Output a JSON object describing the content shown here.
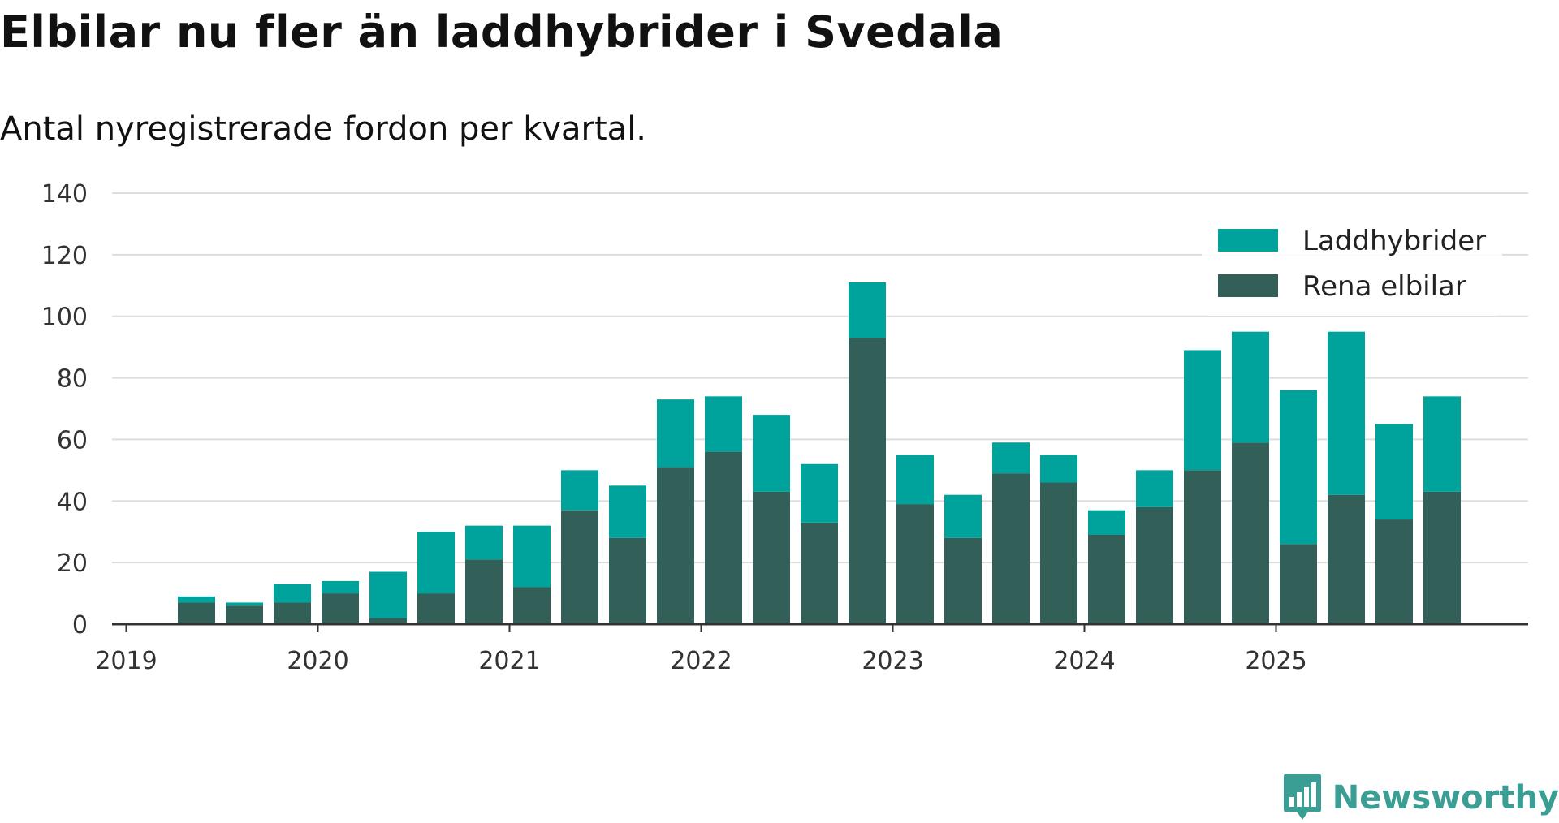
{
  "title": "Elbilar nu fler än laddhybrider i Svedala",
  "subtitle": "Antal nyregistrerade fordon per kvartal.",
  "brand": "Newsworthy",
  "colors": {
    "laddhybrider": "#00a39b",
    "rena_elbilar": "#335f59",
    "grid": "#dddddd",
    "axis": "#333333",
    "brand": "#3a9e94"
  },
  "chart_data": {
    "type": "bar",
    "stacked": true,
    "title": "Elbilar nu fler än laddhybrider i Svedala",
    "subtitle": "Antal nyregistrerade fordon per kvartal.",
    "xlabel": "",
    "ylabel": "",
    "ylim": [
      0,
      140
    ],
    "yticks": [
      0,
      20,
      40,
      60,
      80,
      100,
      120,
      140
    ],
    "year_ticks": [
      "2019",
      "2020",
      "2021",
      "2022",
      "2023",
      "2024",
      "2025"
    ],
    "categories": [
      "2019 Q1",
      "2019 Q2",
      "2019 Q3",
      "2019 Q4",
      "2020 Q1",
      "2020 Q2",
      "2020 Q3",
      "2020 Q4",
      "2021 Q1",
      "2021 Q2",
      "2021 Q3",
      "2021 Q4",
      "2022 Q1",
      "2022 Q2",
      "2022 Q3",
      "2022 Q4",
      "2023 Q1",
      "2023 Q2",
      "2023 Q3",
      "2023 Q4",
      "2024 Q1",
      "2024 Q2",
      "2024 Q3",
      "2024 Q4",
      "2025 Q1",
      "2025 Q2",
      "2025 Q3",
      "2025 Q4"
    ],
    "legend_position": "top-right",
    "series": [
      {
        "name": "Rena elbilar",
        "values": [
          0,
          7,
          6,
          7,
          10,
          2,
          10,
          21,
          12,
          37,
          28,
          51,
          56,
          43,
          33,
          93,
          39,
          28,
          49,
          46,
          29,
          38,
          50,
          59,
          26,
          42,
          34,
          43
        ]
      },
      {
        "name": "Laddhybrider",
        "values": [
          0,
          2,
          1,
          6,
          4,
          15,
          20,
          11,
          20,
          13,
          17,
          22,
          18,
          25,
          19,
          18,
          16,
          14,
          10,
          9,
          8,
          12,
          39,
          36,
          50,
          53,
          31,
          31
        ]
      }
    ],
    "legend": [
      "Laddhybrider",
      "Rena elbilar"
    ]
  }
}
